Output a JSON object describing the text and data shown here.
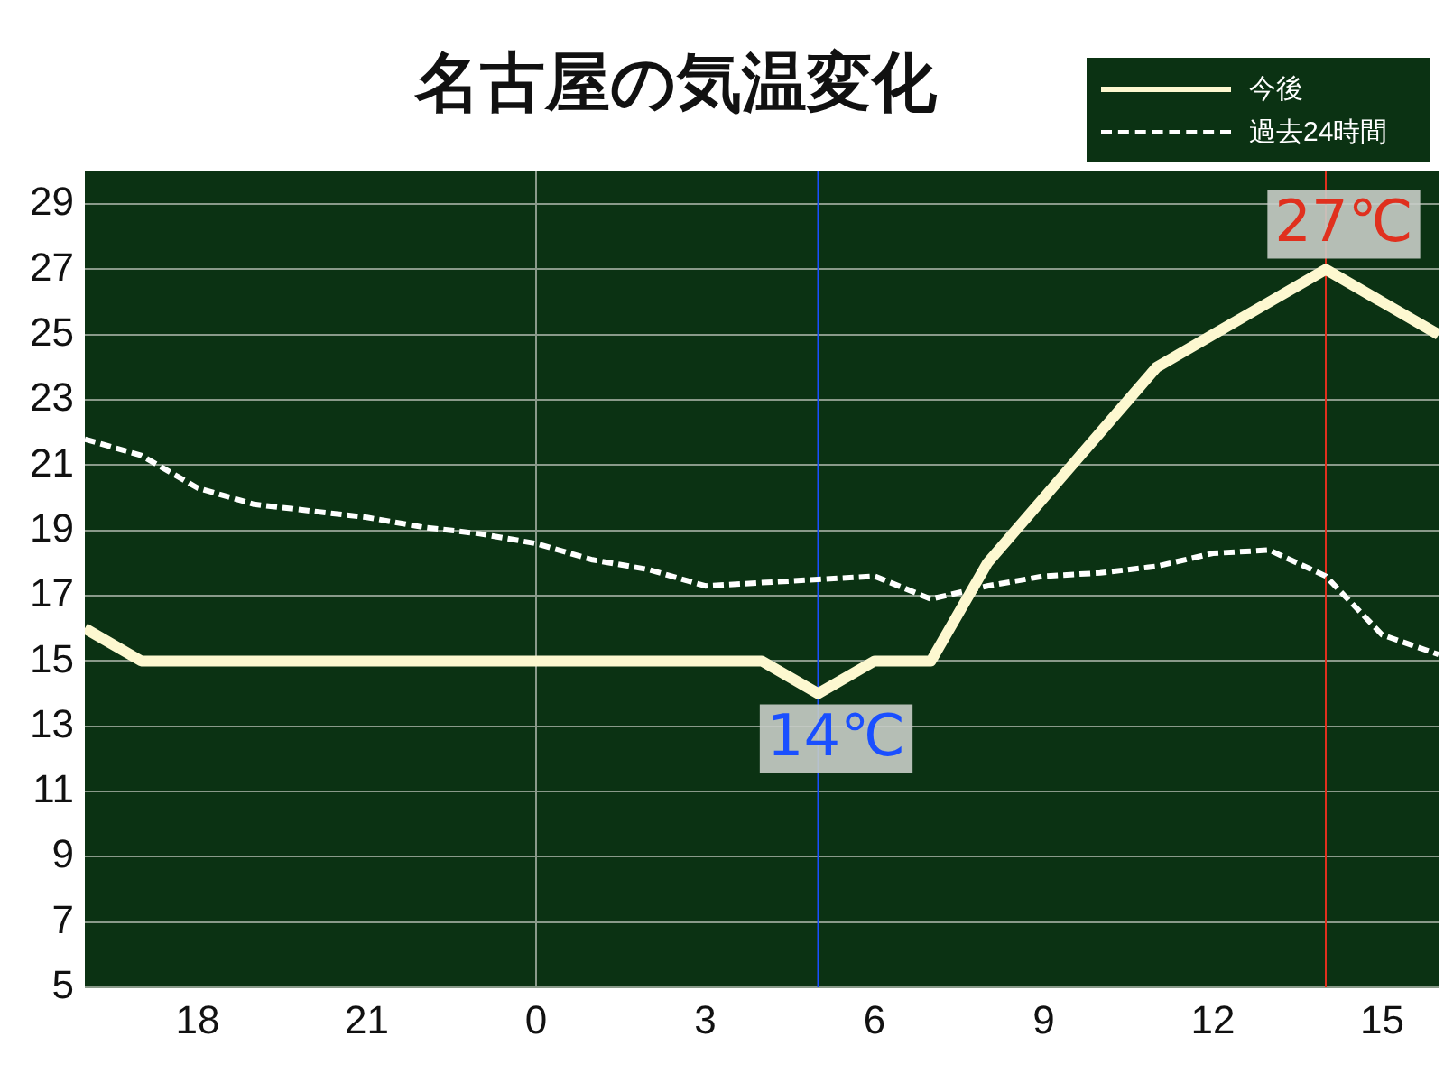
{
  "chart_data": {
    "type": "line",
    "title": "名古屋の気温変化",
    "x": [
      "--01-01T16:00",
      "--01-01T17:00",
      "--01-01T18:00",
      "--01-01T19:00",
      "--01-01T20:00",
      "--01-01T21:00",
      "--01-01T22:00",
      "--01-01T23:00",
      "--01-02T00:00",
      "--01-02T01:00",
      "--01-02T02:00",
      "--01-02T03:00",
      "--01-02T04:00",
      "--01-02T05:00",
      "--01-02T06:00",
      "--01-02T07:00",
      "--01-02T08:00",
      "--01-02T09:00",
      "--01-02T10:00",
      "--01-02T11:00",
      "--01-02T12:00",
      "--01-02T13:00",
      "--01-02T14:00",
      "--01-02T15:00",
      "--01-02T16:00"
    ],
    "xlim": [
      "--01-01T16:00",
      "--01-02T16:00"
    ],
    "xticks": [
      {
        "value": "--01-01T18:00",
        "label": "18"
      },
      {
        "value": "--01-01T21:00",
        "label": "21"
      },
      {
        "value": "--01-02T00:00",
        "label": "0"
      },
      {
        "value": "--01-02T03:00",
        "label": "3"
      },
      {
        "value": "--01-02T06:00",
        "label": "6"
      },
      {
        "value": "--01-02T09:00",
        "label": "9"
      },
      {
        "value": "--01-02T12:00",
        "label": "12"
      },
      {
        "value": "--01-02T15:00",
        "label": "15"
      }
    ],
    "ylim": [
      5,
      30
    ],
    "yticks": [
      5,
      7,
      9,
      11,
      13,
      15,
      17,
      19,
      21,
      23,
      25,
      27,
      29
    ],
    "series": [
      {
        "name": "今後",
        "color": "#fdf8d0",
        "line_style": "solid",
        "values": [
          16,
          15,
          15,
          15,
          15,
          15,
          15,
          15,
          15,
          15,
          15,
          15,
          15,
          14,
          15,
          15,
          18,
          20,
          22,
          24,
          25,
          26,
          27,
          26,
          25
        ]
      },
      {
        "name": "過去24時間",
        "color": "#ffffff",
        "line_style": "dashed",
        "values": [
          21.8,
          21.3,
          20.3,
          19.8,
          19.6,
          19.4,
          19.1,
          18.9,
          18.6,
          18.1,
          17.8,
          17.3,
          17.4,
          17.5,
          17.6,
          16.9,
          17.3,
          17.6,
          17.7,
          17.9,
          18.3,
          18.4,
          17.6,
          15.8,
          15.2
        ]
      }
    ],
    "ref_lines": [
      {
        "axis": "x",
        "value": "--01-02T00:00",
        "color": "#8a9a8a"
      },
      {
        "axis": "x",
        "value": "--01-02T05:00",
        "color": "#1a4fff"
      },
      {
        "axis": "x",
        "value": "--01-02T14:00",
        "color": "#e0301e"
      }
    ],
    "annotations": [
      {
        "text": "14℃",
        "x": "--01-02T05:00",
        "y": 14
      },
      {
        "text": "27℃",
        "x": "--01-02T14:00",
        "y": 27
      }
    ],
    "grid": "y",
    "legend": "top right",
    "marker": "none"
  }
}
